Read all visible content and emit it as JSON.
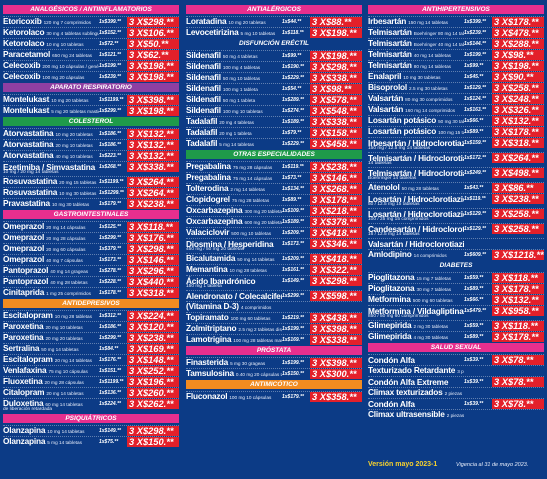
{
  "colors": {
    "price_tag": "#e3202a",
    "background": "#0c3b86"
  },
  "col1": [
    {
      "type": "header",
      "text": "ANALGÉSICOS / ANTIINFLAMATORIOS",
      "color": "#e72f8e"
    },
    {
      "name": "Etoricoxib",
      "desc": "120 mg 7 comprimidos",
      "price": "1x$399.**",
      "offer": "3 X$298.**"
    },
    {
      "name": "Ketorolaco",
      "desc": "30 mg 4 tabletas sublinguales",
      "price": "1x$152.**",
      "offer": "3 X$106.**"
    },
    {
      "name": "Ketorolaco",
      "desc": "10 mg 10 tabletas",
      "price": "1x$72.**",
      "offer": "3 X$50.**"
    },
    {
      "name": "Paracetamol",
      "desc": "650 mg 24 tabletas",
      "price": "1x$121.**",
      "offer": "3 X$62.**"
    },
    {
      "name": "Celecoxib",
      "desc": "200 mg 10 cápsulas / genérico",
      "price": "1x$199.**",
      "offer": "3 X$198.**"
    },
    {
      "name": "Celecoxib",
      "desc": "100 mg 20 cápsulas",
      "price": "1x$239.**",
      "offer": "3 X$198.**"
    },
    {
      "type": "header",
      "text": "APARATO RESPIRATORIO",
      "color": "#8e3fa2"
    },
    {
      "name": "Montelukast",
      "desc": "10 mg 20 tabletas",
      "price": "1x$1199.**",
      "offer": "3 X$398.**"
    },
    {
      "name": "Montelukast",
      "desc": "5 mg 20 tabletas masticables",
      "price": "1x$299.**",
      "offer": "3 X$198.**"
    },
    {
      "type": "header",
      "text": "COLESTEROL",
      "color": "#1f9a4a"
    },
    {
      "name": "Atorvastatina",
      "desc": "10 mg 20 tabletas",
      "price": "1x$186.**",
      "offer": "3 X$132.**"
    },
    {
      "name": "Atorvastatina",
      "desc": "20 mg 10 tabletas",
      "price": "1x$186.**",
      "offer": "3 X$132.**"
    },
    {
      "name": "Atorvastatina",
      "desc": "40 mg 10 tabletas",
      "price": "1x$223.**",
      "offer": "3 X$132.**"
    },
    {
      "name": "Ezetimiba / Simvastatina",
      "desc": "",
      "price": "1x$268.**",
      "offer": "3 X$338.**"
    },
    {
      "type": "sub",
      "text": "10 mg / 20 mg 14 tabletas"
    },
    {
      "name": "Rosuvastatina",
      "desc": "20 mg 15 tabletas",
      "price": "1x$1199.**",
      "offer": "3 X$264.**"
    },
    {
      "name": "Rosuvastatina",
      "desc": "10 mg 30 tabletas",
      "price": "1x$1299.**",
      "offer": "3 X$264.**"
    },
    {
      "name": "Pravastatina",
      "desc": "10 mg 30 tabletas",
      "price": "1x$179.**",
      "offer": "3 X$238.**"
    },
    {
      "type": "header",
      "text": "GASTROINTESTINALES",
      "color": "#e72f8e"
    },
    {
      "name": "Omeprazol",
      "desc": "20 mg 14 cápsulas",
      "price": "1x$125.**",
      "offer": "3 X$118.**"
    },
    {
      "name": "Omeprazol",
      "desc": "20 mg 28 cápsulas",
      "price": "1x$299.**",
      "offer": "3 X$176.**"
    },
    {
      "name": "Omeprazol",
      "desc": "20 mg 60 cápsulas",
      "price": "1x$379.**",
      "offer": "3 X$298.**"
    },
    {
      "name": "Omeprazol",
      "desc": "40 mg 7 cápsulas",
      "price": "1x$173.**",
      "offer": "3 X$146.**"
    },
    {
      "name": "Pantoprazol",
      "desc": "40 mg 14 grageas",
      "price": "1x$278.**",
      "offer": "3 X$296.**"
    },
    {
      "name": "Pantoprazol",
      "desc": "40 mg 28 tabletas",
      "price": "1x$228.**",
      "offer": "3 X$440.**"
    },
    {
      "name": "Cinitaprida",
      "desc": "1 mg 25 comprimidos",
      "price": "1x$178.**",
      "offer": "3 X$318.**"
    },
    {
      "type": "header",
      "text": "ANTIDEPRESIVOS",
      "color": "#f18b21"
    },
    {
      "name": "Escitalopram",
      "desc": "10 mg 28 tabletas",
      "price": "1x$312.**",
      "offer": "3 X$224.**"
    },
    {
      "name": "Paroxetina",
      "desc": "20 mg 10 tabletas",
      "price": "1x$186.**",
      "offer": "3 X$120.**"
    },
    {
      "name": "Paroxetina",
      "desc": "20 mg 20 tabletas",
      "price": "1x$299.**",
      "offer": "3 X$238.**"
    },
    {
      "name": "Sertralina",
      "desc": "50 mg 14 tabletas",
      "price": "1x$84.**",
      "offer": "3 X$169.**"
    },
    {
      "name": "Escitalopram",
      "desc": "20 mg 14 tabletas",
      "price": "1x$176.**",
      "offer": "3 X$148.**"
    },
    {
      "name": "Venlafaxina",
      "desc": "75 mg 10 cápsulas",
      "price": "1x$151.**",
      "offer": "3 X$252.**"
    },
    {
      "name": "Fluoxetina",
      "desc": "20 mg 28 cápsulas",
      "price": "1x$1199.**",
      "offer": "3 X$196.**"
    },
    {
      "name": "Citalopram",
      "desc": "20 mg 14 tabletas",
      "price": "1x$136.**",
      "offer": "3 X$260.**"
    },
    {
      "name": "Duloxetina",
      "desc": "60 mg 14 tabletas",
      "price": "1x$224.**",
      "offer": "3 X$262.**"
    },
    {
      "type": "sub",
      "text": "de liberación retardada"
    },
    {
      "type": "header",
      "text": "PSIQUIÁTRICOS",
      "color": "#e72f8e"
    },
    {
      "name": "Olanzapina",
      "desc": "10 mg 14 tabletas",
      "price": "1x$149.**",
      "offer": "3 X$298.**"
    },
    {
      "name": "Olanzapina",
      "desc": "5 mg 14 tabletas",
      "price": "1x$75.**",
      "offer": "3 X$150.**"
    }
  ],
  "col2": [
    {
      "type": "header",
      "text": "ANTIALÉRGICOS",
      "color": "#e72f8e"
    },
    {
      "name": "Loratadina",
      "desc": "10 mg 20 tabletas",
      "price": "1x$44.**",
      "offer": "3 X$88.**"
    },
    {
      "name": "Levocetirizina",
      "desc": "5 mg 10 tabletas",
      "price": "1x$118.**",
      "offer": "3 X$198.**"
    },
    {
      "type": "header",
      "text": "DISFUNCIÓN ERÉCTIL",
      "color": "#0c3b86"
    },
    {
      "name": "Sildenafil",
      "desc": "50 mg 4 tabletas",
      "price": "1x$99.**",
      "offer": "3 X$198.**"
    },
    {
      "name": "Sildenafil",
      "desc": "100 mg 4 tabletas",
      "price": "1x$190.**",
      "offer": "3 X$298.**"
    },
    {
      "name": "Sildenafil",
      "desc": "50 mg 10 tabletas",
      "price": "1x$229.**",
      "offer": "3 X$338.**"
    },
    {
      "name": "Sildenafil",
      "desc": "100 mg 1 tableta",
      "price": "1x$54.**",
      "offer": "3 X$98.**"
    },
    {
      "name": "Sildenafil",
      "desc": "50 mg 1 tableta",
      "price": "1x$289.**",
      "offer": "3 X$578.**"
    },
    {
      "name": "Sildenafil",
      "desc": "100 mg 10 tabletas",
      "price": "1x$274.**",
      "offer": "3 X$548.**"
    },
    {
      "name": "Tadalafil",
      "desc": "20 mg 4 tabletas",
      "price": "1x$189.**",
      "offer": "3 X$338.**"
    },
    {
      "name": "Tadalafil",
      "desc": "20 mg 1 tableta",
      "price": "1x$79.**",
      "offer": "3 X$158.**"
    },
    {
      "name": "Tadalafil",
      "desc": "5 mg 14 tabletas",
      "price": "1x$229.**",
      "offer": "3 X$458.**"
    },
    {
      "type": "header",
      "text": "OTRAS ESPECIALIDADES",
      "color": "#1f9a4a"
    },
    {
      "name": "Pregabalina",
      "desc": "75 mg 28 cápsulas",
      "price": "1x$119.**",
      "offer": "3 X$238.**"
    },
    {
      "name": "Pregabalina",
      "desc": "75 mg 14 cápsulas",
      "price": "1x$73.**",
      "offer": "3 X$146.**"
    },
    {
      "name": "Tolterodina",
      "desc": "2 mg 14 tabletas",
      "price": "1x$134.**",
      "offer": "3 X$268.**"
    },
    {
      "name": "Clopidogrel",
      "desc": "75 mg 28 tabletas",
      "price": "1x$89.**",
      "offer": "3 X$178.**"
    },
    {
      "name": "Oxcarbazepina",
      "desc": "300 mg 20 tabletas",
      "price": "1x$109.**",
      "offer": "3 X$218.**"
    },
    {
      "name": "Oxcarbazepina",
      "desc": "600 mg 20 tabletas",
      "price": "1x$189.**",
      "offer": "3 X$378.**"
    },
    {
      "name": "Valaciclovir",
      "desc": "500 mg 10 tabletas",
      "price": "1x$209.**",
      "offer": "3 X$418.**"
    },
    {
      "name": "Diosmina / Hesperidina",
      "desc": "",
      "price": "1x$173.**",
      "offer": "3 X$346.**"
    },
    {
      "type": "sub",
      "text": "450 mg / 50 mg 20 tabletas"
    },
    {
      "name": "Bicalutamida",
      "desc": "50 mg 14 tabletas",
      "price": "1x$209.**",
      "offer": "3 X$418.**"
    },
    {
      "name": "Memantina",
      "desc": "10 mg 28 tabletas",
      "price": "1x$161.**",
      "offer": "3 X$322.**"
    },
    {
      "name": "Ácido Ibandrónico",
      "desc": "",
      "price": "1x$149.**",
      "offer": "3 X$298.**"
    },
    {
      "type": "sub",
      "text": "150 mg 1 tableta"
    },
    {
      "name": "Alendronato / Colecalciferol",
      "desc": "",
      "price": "1x$299.**",
      "offer": "3 X$598.**"
    },
    {
      "name": "(Vitamina D-3)",
      "desc": "4 comprimidos",
      "price": "",
      "offer": ""
    },
    {
      "name": "Topiramato",
      "desc": "100 mg 60 tabletas",
      "price": "1x$219.**",
      "offer": "3 X$438.**"
    },
    {
      "name": "Zolmitriptano",
      "desc": "2.5 mg 2 tabletas dispersable",
      "price": "1x$199.**",
      "offer": "3 X$398.**"
    },
    {
      "name": "Lamotrigina",
      "desc": "100 mg 28 tabletas masticables",
      "price": "1x$169.**",
      "offer": "3 X$338.**"
    },
    {
      "type": "header",
      "text": "PRÓSTATA",
      "color": "#e72f8e"
    },
    {
      "name": "Finasterida",
      "desc": "5 mg 30 grageas",
      "price": "1x$199.**",
      "offer": "3 X$398.**"
    },
    {
      "name": "Tamsulosina",
      "desc": "0.40 mg 20 cápsulas LP",
      "price": "1x$150.**",
      "offer": "3 X$300.**"
    },
    {
      "type": "header",
      "text": "ANTIMICÓTICO",
      "color": "#f18b21"
    },
    {
      "name": "Fluconazol",
      "desc": "100 mg 10 cápsulas",
      "price": "1x$179.**",
      "offer": "3 X$358.**"
    }
  ],
  "col3": [
    {
      "type": "header",
      "text": "ANTIHIPERTENSIVOS",
      "color": "#e72f8e"
    },
    {
      "name": "Irbesartán",
      "desc": "150 mg 14 tabletas",
      "price": "1x$399.**",
      "offer": "3 X$178.**"
    },
    {
      "name": "Telmisartán",
      "desc": "Boehringer 80 mg 14 tabletas",
      "price": "1x$239.**",
      "offer": "3 X$478.**"
    },
    {
      "name": "Telmisartán",
      "desc": "Boehringer 40 mg 14 tabletas",
      "price": "1x$144.**",
      "offer": "3 X$288.**"
    },
    {
      "name": "Telmisartán",
      "desc": "40 mg 14 tabletas",
      "price": "1x$199.**",
      "offer": "3 X$98.**"
    },
    {
      "name": "Telmisartán",
      "desc": "80 mg 14 tabletas",
      "price": "1x$99.**",
      "offer": "3 X$198.**"
    },
    {
      "name": "Enalapril",
      "desc": "10 mg 30 tabletas",
      "price": "1x$45.**",
      "offer": "3 X$90.**"
    },
    {
      "name": "Bisoprolol",
      "desc": "2.5 mg 30 tabletas",
      "price": "1x$129.**",
      "offer": "3 X$258.**"
    },
    {
      "name": "Valsartán",
      "desc": "80 mg 30 comprimidos",
      "price": "1x$124.**",
      "offer": "3 X$248.**"
    },
    {
      "name": "Valsartán",
      "desc": "160 mg 14 comprimidos",
      "price": "1x$163.**",
      "offer": "3 X$326.**"
    },
    {
      "name": "Losartán potásico",
      "desc": "50 mg 30 tabletas",
      "price": "1x$66.**",
      "offer": "3 X$132.**"
    },
    {
      "name": "Losartán potásico",
      "desc": "100 mg 15 tabletas",
      "price": "1x$89.**",
      "offer": "3 X$178.**"
    },
    {
      "name": "Irbesartán / Hidroclorotiazida",
      "desc": "",
      "price": "1x$159.**",
      "offer": "3 X$318.**"
    },
    {
      "type": "sub",
      "text": "150 mg / 12.5 mg 14 tabletas"
    },
    {
      "name": "Telmisartán / Hidroclorotiazida",
      "desc": "",
      "price": "1x$172.**",
      "offer": "3 X$264.**"
    },
    {
      "type": "sub",
      "text": "14 tabletas"
    },
    {
      "name": "Telmisartán / Hidroclorotiazida",
      "desc": "",
      "price": "1x$249.**",
      "offer": "3 X$498.**"
    },
    {
      "type": "sub",
      "text": "Boehringer 14 tabletas"
    },
    {
      "name": "Atenolol",
      "desc": "50 mg 28 tabletas",
      "price": "1x$43.**",
      "offer": "3 X$86.**"
    },
    {
      "name": "Losartán / Hidroclorotiazida",
      "desc": "",
      "price": "1x$119.**",
      "offer": "3 X$238.**"
    },
    {
      "type": "sub",
      "text": "50 / 12.5 mg 15 tabletas"
    },
    {
      "name": "Losartán / Hidroclorotiazida",
      "desc": "",
      "price": "1x$129.**",
      "offer": "3 X$258.**"
    },
    {
      "type": "sub",
      "text": "100 / 25 mg 15 comprimidos"
    },
    {
      "name": "Candesartán / Hidroclorotiazida",
      "desc": "",
      "price": "1x$129.**",
      "offer": "3 X$258.**"
    },
    {
      "type": "sub",
      "text": "16 / 12.5 mg 14 tabletas"
    },
    {
      "name": "Valsartán / Hidroclorotiazida /",
      "desc": "",
      "price": "",
      "offer": ""
    },
    {
      "name": "Amlodipino",
      "desc": "14 comprimidos",
      "price": "1x$609.**",
      "offer": "3 X$1218.**"
    },
    {
      "type": "header",
      "text": "DIABETES",
      "color": "#0c3b86"
    },
    {
      "name": "Pioglitazona",
      "desc": "15 mg 7 tabletas",
      "price": "1x$59.**",
      "offer": "3 X$118.**"
    },
    {
      "name": "Pioglitazona",
      "desc": "30 mg 7 tabletas",
      "price": "1x$89.**",
      "offer": "3 X$178.**"
    },
    {
      "name": "Metformina",
      "desc": "500 mg 60 tabletas",
      "price": "1x$66.**",
      "offer": "3 X$132.**"
    },
    {
      "name": "Metformina / Vildagliptina",
      "desc": "",
      "price": "1x$479.**",
      "offer": "3 X$958.**"
    },
    {
      "type": "sub",
      "text": "850 / 50 mg 60 comprimidos"
    },
    {
      "name": "Glimepirida",
      "desc": "2 mg 30 tabletas",
      "price": "1x$59.**",
      "offer": "3 X$118.**"
    },
    {
      "name": "Glimepirida",
      "desc": "4 mg 30 tabletas",
      "price": "1x$89.**",
      "offer": "3 X$178.**"
    },
    {
      "type": "header",
      "text": "SALUD SEXUAL",
      "color": "#e72f8e"
    },
    {
      "name": "Condón Alfa",
      "desc": "",
      "price": "1x$39.**",
      "offer": "3 X$78.**"
    },
    {
      "name": "Texturizado Retardante",
      "desc": "3 piezas",
      "price": "",
      "offer": ""
    },
    {
      "name": "Condón Alfa Extreme",
      "desc": "",
      "price": "1x$39.**",
      "offer": "3 X$78.**"
    },
    {
      "name": "Climax texturizados",
      "desc": "2 piezas",
      "price": "",
      "offer": ""
    },
    {
      "name": "Condón Alfa",
      "desc": "",
      "price": "1x$39.**",
      "offer": "3 X$78.**"
    },
    {
      "name": "Climax ultrasensible",
      "desc": "2 piezas",
      "price": "",
      "offer": ""
    }
  ],
  "footer": {
    "version": "Versión mayo 2023-1",
    "validity": "Vigencia al 31 de mayo 2023."
  }
}
